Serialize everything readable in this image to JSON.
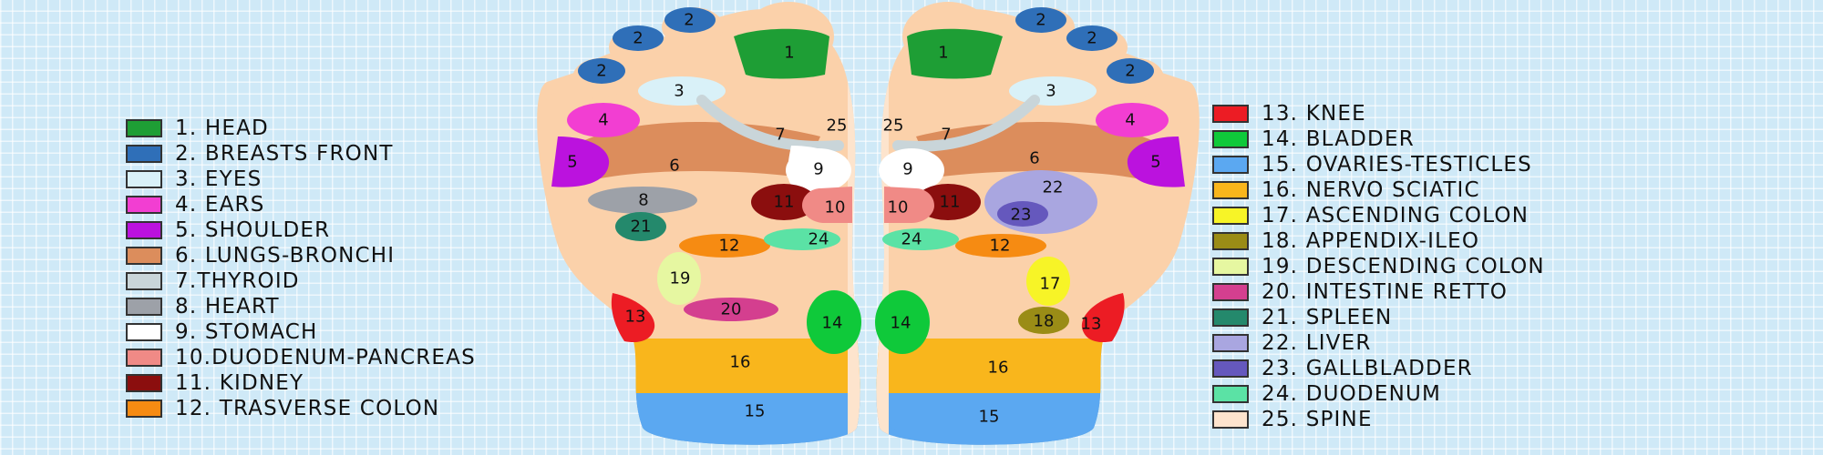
{
  "legend": [
    {
      "id": 1,
      "label": "1. HEAD",
      "color": "#1e9e35"
    },
    {
      "id": 2,
      "label": "2. BREASTS FRONT",
      "color": "#2f6fb8"
    },
    {
      "id": 3,
      "label": "3. EYES",
      "color": "#d9f1f8"
    },
    {
      "id": 4,
      "label": "4. EARS",
      "color": "#f23ed2"
    },
    {
      "id": 5,
      "label": "5. SHOULDER",
      "color": "#bb12de"
    },
    {
      "id": 6,
      "label": "6. LUNGS-BRONCHI",
      "color": "#dc8d5c"
    },
    {
      "id": 7,
      "label": "7.THYROID",
      "color": "#c9d5d9"
    },
    {
      "id": 8,
      "label": "8. HEART",
      "color": "#9da1a8"
    },
    {
      "id": 9,
      "label": "9. STOMACH",
      "color": "#ffffff"
    },
    {
      "id": 10,
      "label": "10.DUODENUM-PANCREAS",
      "color": "#f08a86"
    },
    {
      "id": 11,
      "label": "11. KIDNEY",
      "color": "#8b0e0e"
    },
    {
      "id": 12,
      "label": "12. TRASVERSE COLON",
      "color": "#f68b12"
    },
    {
      "id": 13,
      "label": "13. KNEE",
      "color": "#ec1c24"
    },
    {
      "id": 14,
      "label": "14. BLADDER",
      "color": "#0fc93a"
    },
    {
      "id": 15,
      "label": "15. OVARIES-TESTICLES",
      "color": "#5ba8f1"
    },
    {
      "id": 16,
      "label": "16. NERVO SCIATIC",
      "color": "#f9b61c"
    },
    {
      "id": 17,
      "label": "17. ASCENDING COLON",
      "color": "#f7f427"
    },
    {
      "id": 18,
      "label": "18. APPENDIX-ILEO",
      "color": "#9a8c16"
    },
    {
      "id": 19,
      "label": "19. DESCENDING COLON",
      "color": "#e6f7a1"
    },
    {
      "id": 20,
      "label": "20. INTESTINE RETTO",
      "color": "#d43f8f"
    },
    {
      "id": 21,
      "label": "21. SPLEEN",
      "color": "#24896c"
    },
    {
      "id": 22,
      "label": "22. LIVER",
      "color": "#a9a6e0"
    },
    {
      "id": 23,
      "label": "23. GALLBLADDER",
      "color": "#6558bd"
    },
    {
      "id": 24,
      "label": "24. DUODENUM",
      "color": "#5be2a5"
    },
    {
      "id": 25,
      "label": "25. SPINE",
      "color": "#fde4cd"
    }
  ],
  "zone_numbers": {
    "n1": "1",
    "n2": "2",
    "n3": "3",
    "n4": "4",
    "n5": "5",
    "n6": "6",
    "n7": "7",
    "n8": "8",
    "n9": "9",
    "n10": "10",
    "n11": "11",
    "n12": "12",
    "n13": "13",
    "n14": "14",
    "n15": "15",
    "n16": "16",
    "n17": "17",
    "n18": "18",
    "n19": "19",
    "n20": "20",
    "n21": "21",
    "n22": "22",
    "n23": "23",
    "n24": "24",
    "n25": "25"
  },
  "foot_skin_color": "#fbd1aa"
}
